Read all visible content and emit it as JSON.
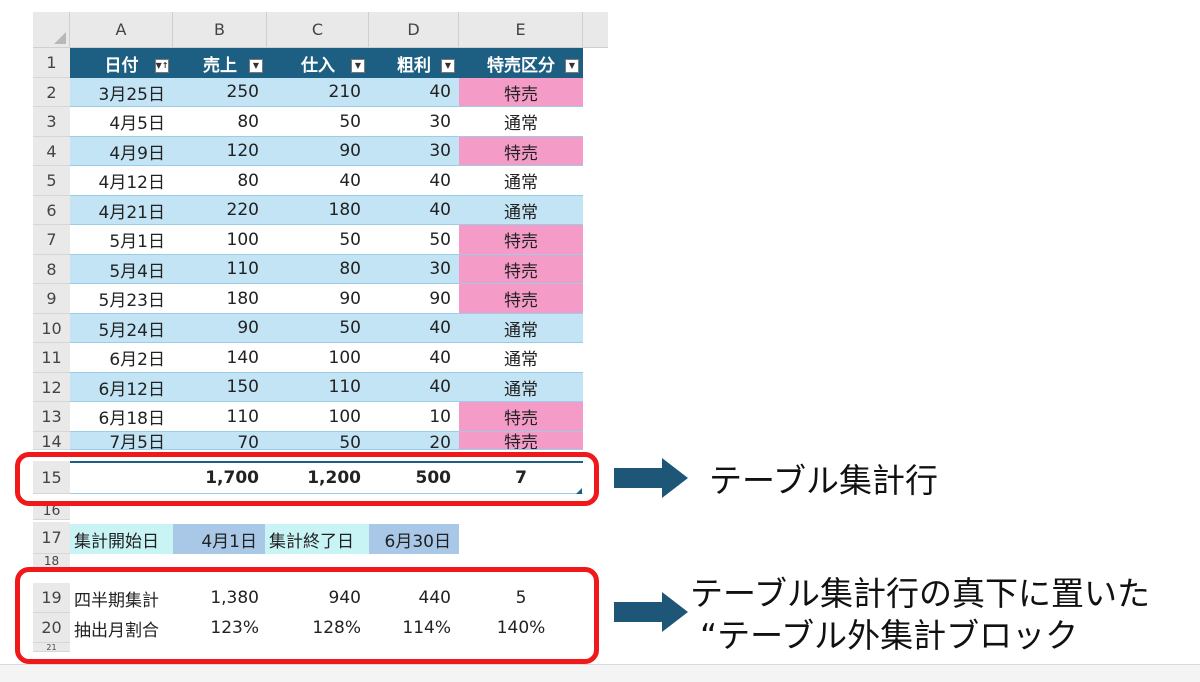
{
  "columns": [
    "A",
    "B",
    "C",
    "D",
    "E"
  ],
  "rows": [
    "1",
    "2",
    "3",
    "4",
    "5",
    "6",
    "7",
    "8",
    "9",
    "10",
    "11",
    "12",
    "13",
    "14",
    "15",
    "16",
    "17",
    "18",
    "19",
    "20",
    "21"
  ],
  "table": {
    "headers": [
      {
        "label": "日付",
        "filter": "sort-asc"
      },
      {
        "label": "売上",
        "filter": "dropdown"
      },
      {
        "label": "仕入",
        "filter": "dropdown"
      },
      {
        "label": "粗利",
        "filter": "dropdown"
      },
      {
        "label": "特売区分",
        "filter": "dropdown"
      }
    ],
    "body": [
      [
        "3月25日",
        "250",
        "210",
        "40",
        "特売"
      ],
      [
        "4月5日",
        "80",
        "50",
        "30",
        "通常"
      ],
      [
        "4月9日",
        "120",
        "90",
        "30",
        "特売"
      ],
      [
        "4月12日",
        "80",
        "40",
        "40",
        "通常"
      ],
      [
        "4月21日",
        "220",
        "180",
        "40",
        "通常"
      ],
      [
        "5月1日",
        "100",
        "50",
        "50",
        "特売"
      ],
      [
        "5月4日",
        "110",
        "80",
        "30",
        "特売"
      ],
      [
        "5月23日",
        "180",
        "90",
        "90",
        "特売"
      ],
      [
        "5月24日",
        "90",
        "50",
        "40",
        "通常"
      ],
      [
        "6月2日",
        "140",
        "100",
        "40",
        "通常"
      ],
      [
        "6月12日",
        "150",
        "110",
        "40",
        "通常"
      ],
      [
        "6月18日",
        "110",
        "100",
        "10",
        "特売"
      ],
      [
        "7月5日",
        "70",
        "50",
        "20",
        "特売"
      ]
    ],
    "total": [
      "",
      "1,700",
      "1,200",
      "500",
      "7"
    ]
  },
  "period": {
    "start_label": "集計開始日",
    "start_value": "4月1日",
    "end_label": "集計終了日",
    "end_value": "6月30日"
  },
  "quarter_row": [
    "四半期集計",
    "1,380",
    "940",
    "440",
    "5"
  ],
  "ratio_row": [
    "抽出月割合",
    "123%",
    "128%",
    "114%",
    "140%"
  ],
  "annotations": {
    "total_row_label": "テーブル集計行",
    "outside_block_line1": "テーブル集計行の真下に置いた",
    "outside_block_line2": "“テーブル外集計ブロック"
  },
  "colors": {
    "header": "#1d5f82",
    "band": "#c3e4f4",
    "special": "#f59bc7",
    "highlight_red": "#f01818",
    "arrow": "#1e5678"
  },
  "icons": [
    "filter-sort-icon",
    "filter-dropdown-icon",
    "resize-handle-icon",
    "arrow-right-icon"
  ]
}
